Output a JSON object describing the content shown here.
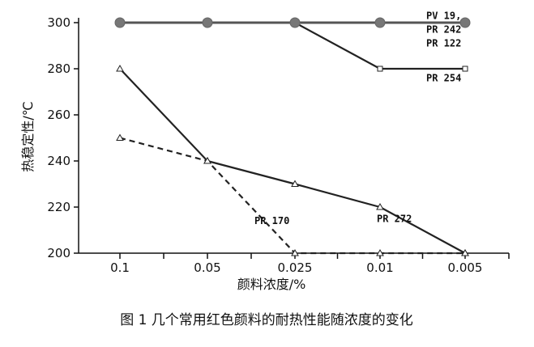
{
  "chart_data": {
    "type": "line",
    "categories": [
      "0.1",
      "0.05",
      "0.025",
      "0.01",
      "0.005"
    ],
    "xlabel": "颜料浓度/%",
    "ylabel": "热稳定性/℃",
    "ylim": [
      200,
      300
    ],
    "yticks": [
      200,
      220,
      240,
      260,
      280,
      300
    ],
    "grid": false,
    "caption": "图 1   几个常用红色颜料的耐热性能随浓度的变化",
    "series": [
      {
        "name": "PV 19, PR 242, PR 122",
        "values": [
          300,
          300,
          300,
          300,
          300
        ],
        "color": "#555555",
        "marker": "circle",
        "dash": "solid"
      },
      {
        "name": "PR 254",
        "values": [
          null,
          null,
          300,
          280,
          280
        ],
        "color": "#222222",
        "marker": "square",
        "dash": "solid"
      },
      {
        "name": "PR 272",
        "values": [
          280,
          240,
          230,
          220,
          200
        ],
        "color": "#222222",
        "marker": "triangle",
        "dash": "solid"
      },
      {
        "name": "PR 170",
        "values": [
          250,
          240,
          200,
          200,
          200
        ],
        "color": "#222222",
        "marker": "triangle",
        "dash": "dashed"
      }
    ],
    "annotations": [
      {
        "text": "PV 19,",
        "x": "0.005",
        "y": 303
      },
      {
        "text": "PR 242",
        "x": "0.005",
        "y": 297
      },
      {
        "text": "PR 122",
        "x": "0.005",
        "y": 291
      },
      {
        "text": "PR  254",
        "x": "0.005",
        "y": 276
      },
      {
        "text": "PR 272",
        "x": "0.01",
        "y": 215
      },
      {
        "text": "PR 170",
        "x": "0.025",
        "y": 214
      }
    ]
  }
}
